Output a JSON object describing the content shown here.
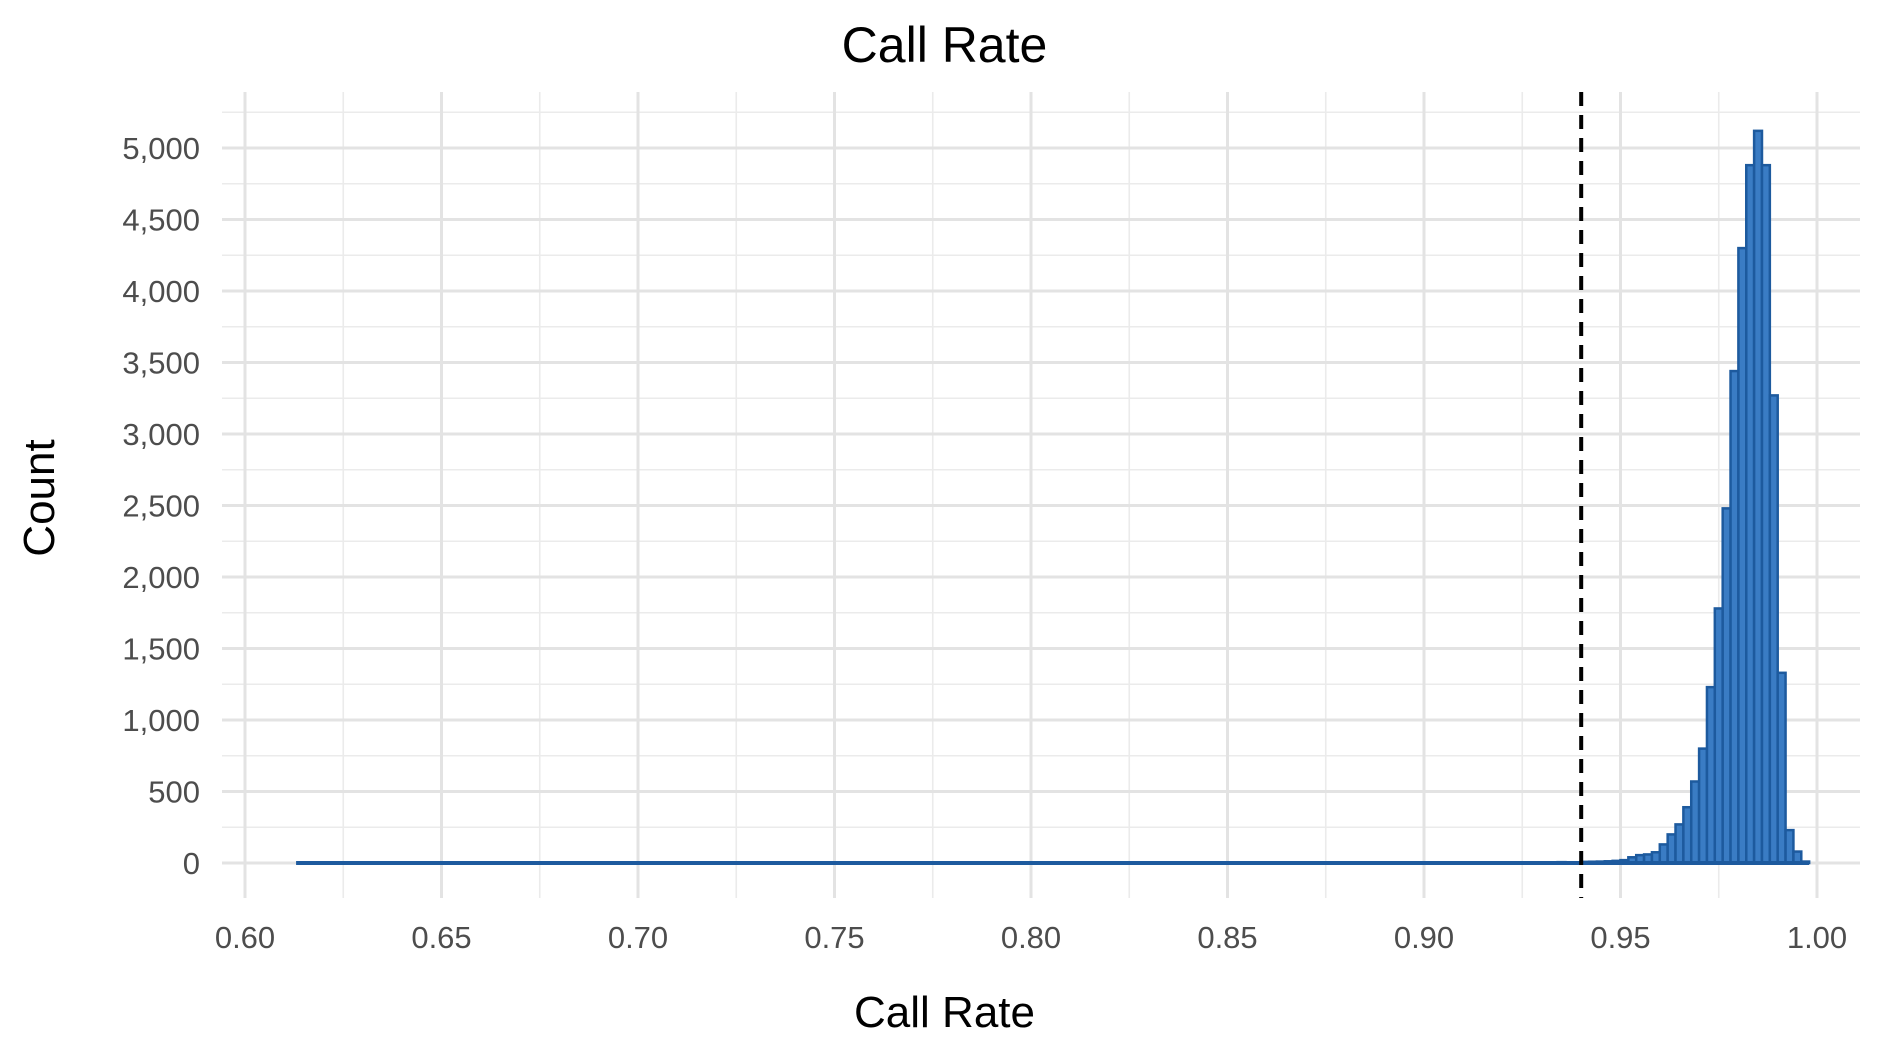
{
  "chart_data": {
    "type": "bar",
    "title": "Call Rate",
    "xlabel": "Call Rate",
    "ylabel": "Count",
    "xlim": [
      0.6,
      1.0
    ],
    "ylim": [
      0,
      5200
    ],
    "x_ticks": [
      0.6,
      0.65,
      0.7,
      0.75,
      0.8,
      0.85,
      0.9,
      0.95,
      1.0
    ],
    "x_tick_labels": [
      "0.60",
      "0.65",
      "0.70",
      "0.75",
      "0.80",
      "0.85",
      "0.90",
      "0.95",
      "1.00"
    ],
    "y_ticks": [
      0,
      500,
      1000,
      1500,
      2000,
      2500,
      3000,
      3500,
      4000,
      4500,
      5000
    ],
    "y_tick_labels": [
      "0",
      "500",
      "1,000",
      "1,500",
      "2,000",
      "2,500",
      "3,000",
      "3,500",
      "4,000",
      "4,500",
      "5,000"
    ],
    "grid": true,
    "legend": "none",
    "bin_width": 0.002,
    "bar_fill": "#3a7cc4",
    "bar_outline": "#1d5a9e",
    "reference_line": {
      "x": 0.94,
      "style": "dashed",
      "color": "#000000"
    },
    "bins": [
      {
        "x": 0.615,
        "count": 1
      },
      {
        "x": 0.625,
        "count": 0
      },
      {
        "x": 0.635,
        "count": 0
      },
      {
        "x": 0.645,
        "count": 1
      },
      {
        "x": 0.655,
        "count": 0
      },
      {
        "x": 0.665,
        "count": 0
      },
      {
        "x": 0.675,
        "count": 1
      },
      {
        "x": 0.685,
        "count": 0
      },
      {
        "x": 0.695,
        "count": 1
      },
      {
        "x": 0.705,
        "count": 0
      },
      {
        "x": 0.715,
        "count": 1
      },
      {
        "x": 0.725,
        "count": 0
      },
      {
        "x": 0.735,
        "count": 1
      },
      {
        "x": 0.745,
        "count": 0
      },
      {
        "x": 0.755,
        "count": 1
      },
      {
        "x": 0.765,
        "count": 1
      },
      {
        "x": 0.775,
        "count": 0
      },
      {
        "x": 0.785,
        "count": 1
      },
      {
        "x": 0.795,
        "count": 1
      },
      {
        "x": 0.805,
        "count": 2
      },
      {
        "x": 0.815,
        "count": 1
      },
      {
        "x": 0.825,
        "count": 1
      },
      {
        "x": 0.835,
        "count": 3
      },
      {
        "x": 0.845,
        "count": 1
      },
      {
        "x": 0.855,
        "count": 2
      },
      {
        "x": 0.865,
        "count": 2
      },
      {
        "x": 0.875,
        "count": 2
      },
      {
        "x": 0.885,
        "count": 3
      },
      {
        "x": 0.895,
        "count": 3
      },
      {
        "x": 0.905,
        "count": 3
      },
      {
        "x": 0.915,
        "count": 4
      },
      {
        "x": 0.925,
        "count": 5
      },
      {
        "x": 0.935,
        "count": 6
      },
      {
        "x": 0.941,
        "count": 8
      },
      {
        "x": 0.943,
        "count": 9
      },
      {
        "x": 0.945,
        "count": 10
      },
      {
        "x": 0.947,
        "count": 12
      },
      {
        "x": 0.949,
        "count": 15
      },
      {
        "x": 0.951,
        "count": 20
      },
      {
        "x": 0.953,
        "count": 40
      },
      {
        "x": 0.955,
        "count": 55
      },
      {
        "x": 0.957,
        "count": 60
      },
      {
        "x": 0.959,
        "count": 75
      },
      {
        "x": 0.961,
        "count": 130
      },
      {
        "x": 0.963,
        "count": 200
      },
      {
        "x": 0.965,
        "count": 270
      },
      {
        "x": 0.967,
        "count": 390
      },
      {
        "x": 0.969,
        "count": 570
      },
      {
        "x": 0.971,
        "count": 800
      },
      {
        "x": 0.973,
        "count": 1230
      },
      {
        "x": 0.975,
        "count": 1780
      },
      {
        "x": 0.977,
        "count": 2480
      },
      {
        "x": 0.979,
        "count": 3440
      },
      {
        "x": 0.981,
        "count": 4300
      },
      {
        "x": 0.983,
        "count": 4880
      },
      {
        "x": 0.985,
        "count": 5120
      },
      {
        "x": 0.987,
        "count": 4880
      },
      {
        "x": 0.989,
        "count": 3270
      },
      {
        "x": 0.991,
        "count": 1330
      },
      {
        "x": 0.993,
        "count": 230
      },
      {
        "x": 0.995,
        "count": 80
      },
      {
        "x": 0.997,
        "count": 10
      }
    ]
  }
}
